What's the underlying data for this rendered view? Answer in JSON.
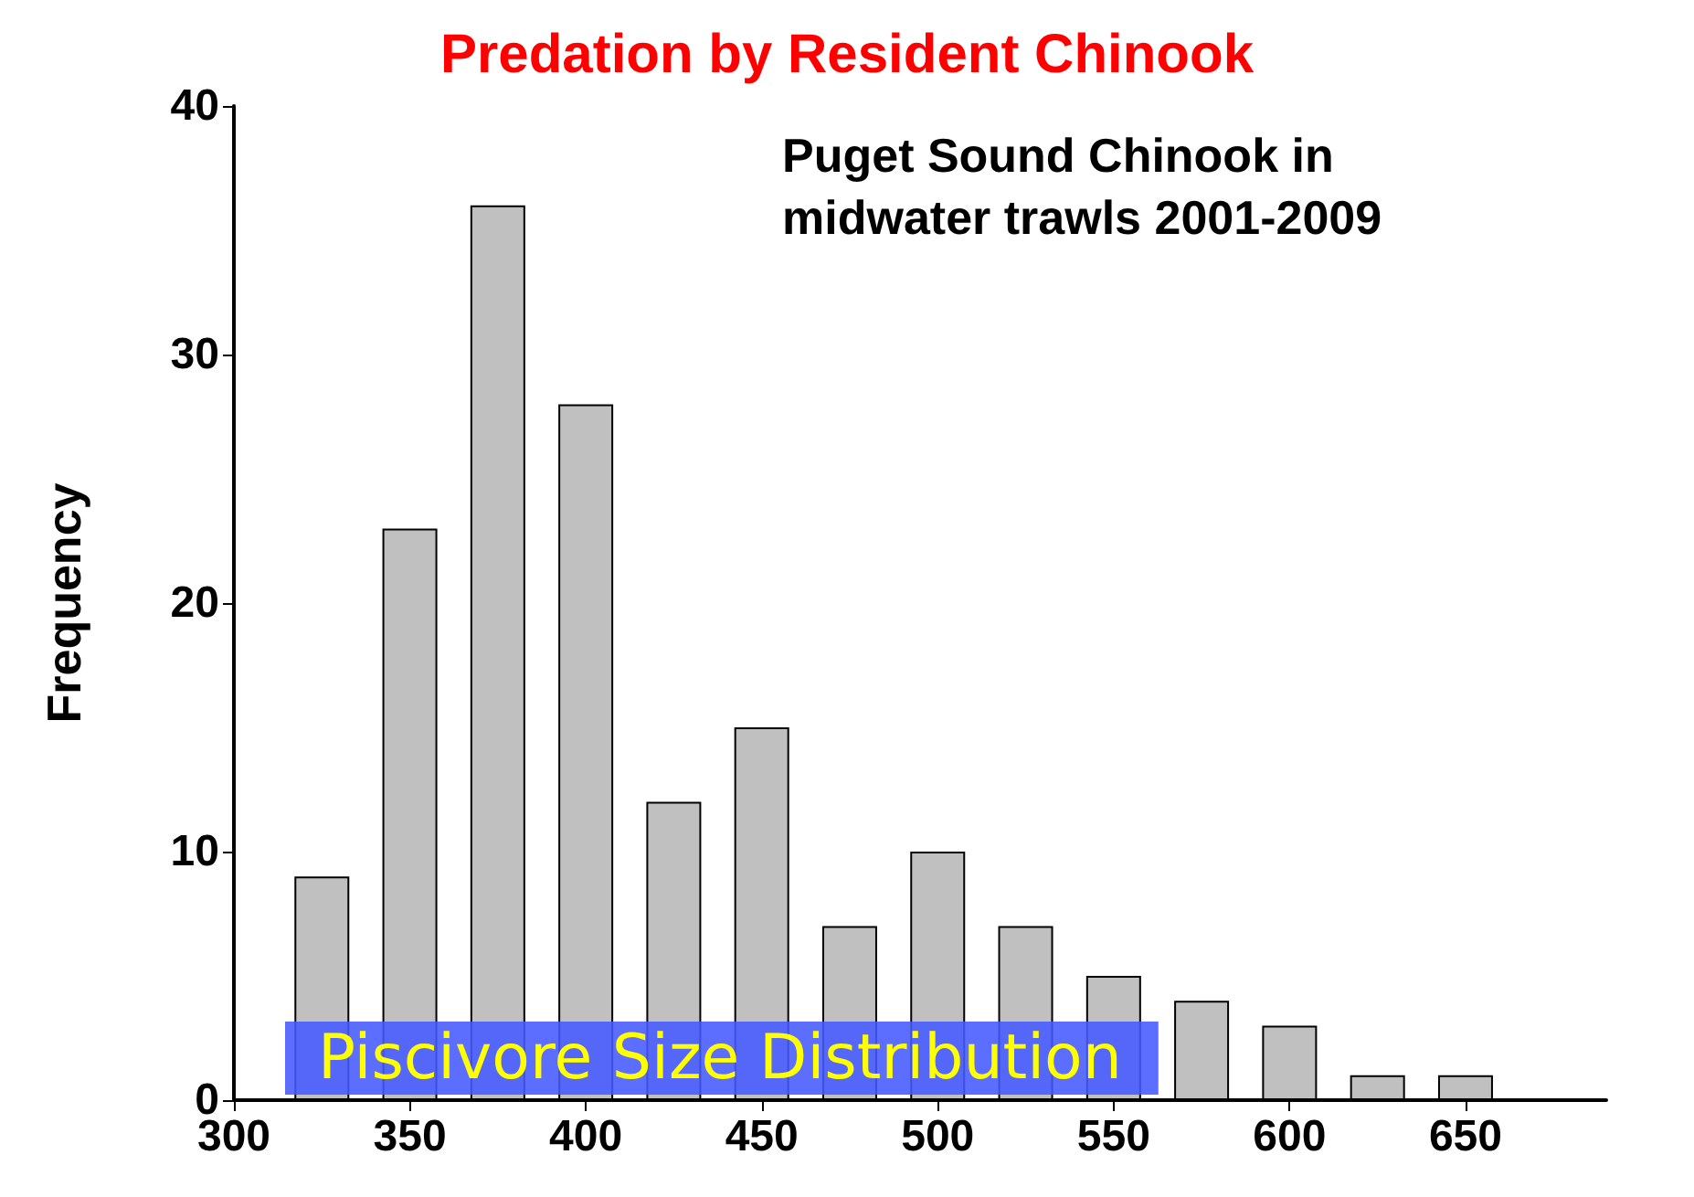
{
  "chart_data": {
    "type": "bar",
    "title": "Predation by Resident Chinook",
    "ylabel": "Frequency",
    "annotations": [
      "Puget Sound Chinook in\nmidwater trawls 2001-2009",
      "Piscivore Size Distribution"
    ],
    "x": [
      325,
      350,
      375,
      400,
      425,
      450,
      475,
      500,
      525,
      550,
      575,
      600,
      625,
      650
    ],
    "values": [
      9,
      23,
      36,
      28,
      12,
      15,
      7,
      10,
      7,
      5,
      4,
      3,
      1,
      1
    ],
    "color": "#c0c0c0",
    "xlim": [
      300,
      690
    ],
    "xticks": [
      300,
      350,
      400,
      450,
      500,
      550,
      600,
      650
    ],
    "ylim": [
      0,
      40
    ],
    "yticks": [
      0,
      10,
      20,
      30,
      40
    ],
    "grid": false
  }
}
